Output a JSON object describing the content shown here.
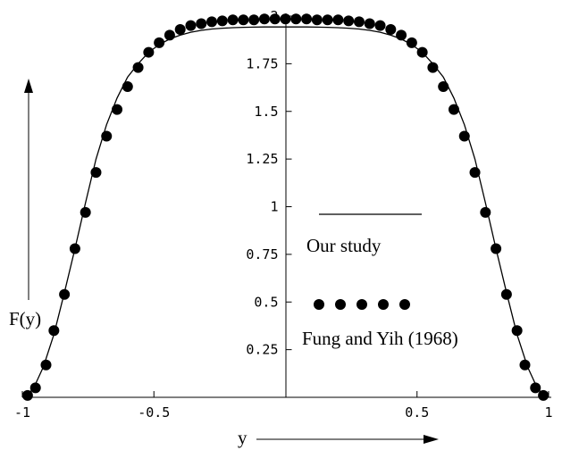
{
  "chart_data": {
    "type": "line",
    "xlabel": "y",
    "ylabel": "F(y)",
    "xlim": [
      -1,
      1
    ],
    "ylim": [
      0,
      2
    ],
    "xticks": [
      "-1",
      "-0.5",
      "0.5",
      "1"
    ],
    "yticks": [
      "0.25",
      "0.5",
      "0.75",
      "1",
      "1.25",
      "1.5",
      "1.75",
      "2"
    ],
    "grid": false,
    "legend_position": "center-right",
    "series": [
      {
        "name": "Our study",
        "style": "line",
        "x": [
          -1,
          -0.96,
          -0.92,
          -0.88,
          -0.84,
          -0.8,
          -0.76,
          -0.72,
          -0.68,
          -0.64,
          -0.6,
          -0.56,
          -0.52,
          -0.48,
          -0.44,
          -0.4,
          -0.36,
          -0.32,
          -0.28,
          -0.24,
          -0.2,
          -0.16,
          -0.12,
          -0.08,
          -0.04,
          0,
          0.04,
          0.08,
          0.12,
          0.16,
          0.2,
          0.24,
          0.28,
          0.32,
          0.36,
          0.4,
          0.44,
          0.48,
          0.52,
          0.56,
          0.6,
          0.64,
          0.68,
          0.72,
          0.76,
          0.8,
          0.84,
          0.88,
          0.92,
          0.96,
          1
        ],
        "y": [
          0,
          0.04,
          0.16,
          0.33,
          0.55,
          0.78,
          1.02,
          1.25,
          1.43,
          1.57,
          1.68,
          1.75,
          1.81,
          1.85,
          1.88,
          1.9,
          1.915,
          1.925,
          1.932,
          1.936,
          1.939,
          1.941,
          1.942,
          1.943,
          1.943,
          1.943,
          1.943,
          1.943,
          1.942,
          1.941,
          1.939,
          1.936,
          1.932,
          1.925,
          1.915,
          1.9,
          1.88,
          1.85,
          1.81,
          1.75,
          1.68,
          1.57,
          1.43,
          1.25,
          1.02,
          0.78,
          0.55,
          0.33,
          0.16,
          0.04,
          0
        ]
      },
      {
        "name": "Fung and Yih (1968)",
        "style": "dots",
        "x": [
          -0.98,
          -0.95,
          -0.91,
          -0.88,
          -0.84,
          -0.8,
          -0.76,
          -0.72,
          -0.68,
          -0.64,
          -0.6,
          -0.56,
          -0.52,
          -0.48,
          -0.44,
          -0.4,
          -0.36,
          -0.32,
          -0.28,
          -0.24,
          -0.2,
          -0.16,
          -0.12,
          -0.08,
          -0.04,
          0,
          0.04,
          0.08,
          0.12,
          0.16,
          0.2,
          0.24,
          0.28,
          0.32,
          0.36,
          0.4,
          0.44,
          0.48,
          0.52,
          0.56,
          0.6,
          0.64,
          0.68,
          0.72,
          0.76,
          0.8,
          0.84,
          0.88,
          0.91,
          0.95,
          0.98
        ],
        "y": [
          0.01,
          0.05,
          0.17,
          0.35,
          0.54,
          0.78,
          0.97,
          1.18,
          1.37,
          1.51,
          1.63,
          1.73,
          1.81,
          1.86,
          1.9,
          1.93,
          1.95,
          1.96,
          1.97,
          1.975,
          1.98,
          1.98,
          1.98,
          1.985,
          1.985,
          1.985,
          1.985,
          1.985,
          1.98,
          1.98,
          1.98,
          1.975,
          1.97,
          1.96,
          1.95,
          1.93,
          1.9,
          1.86,
          1.81,
          1.73,
          1.63,
          1.51,
          1.37,
          1.18,
          0.97,
          0.78,
          0.54,
          0.35,
          0.17,
          0.05,
          0.01
        ]
      }
    ]
  }
}
